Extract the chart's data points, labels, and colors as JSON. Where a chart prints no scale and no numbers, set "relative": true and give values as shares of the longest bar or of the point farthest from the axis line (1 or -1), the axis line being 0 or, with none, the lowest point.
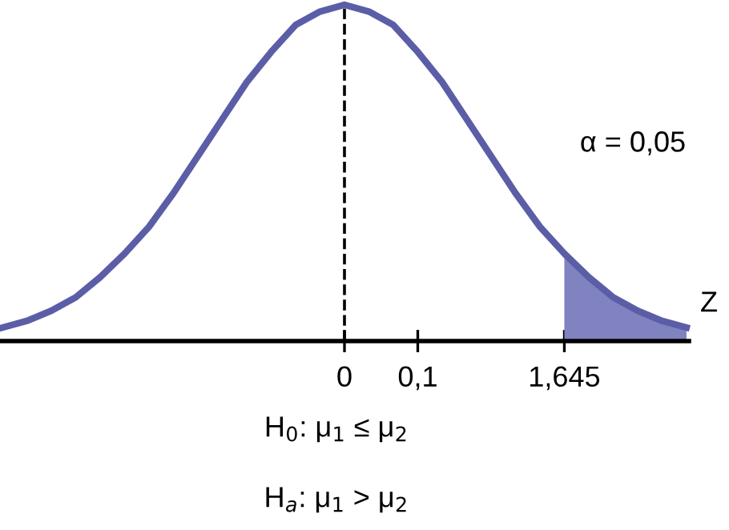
{
  "chart_data": {
    "type": "line",
    "relative": true,
    "xlabel": "Z",
    "categories": [
      null,
      null,
      null,
      null,
      null,
      null,
      null,
      null,
      null,
      null,
      null,
      null,
      null,
      null,
      "0",
      null,
      null,
      "0,1",
      null,
      null,
      null,
      null,
      null,
      "1,645",
      null,
      null,
      null,
      null,
      null
    ],
    "series": [
      {
        "color": "#5b5ea6",
        "values": [
          0.04,
          0.06,
          0.09,
          0.13,
          0.19,
          0.26,
          0.34,
          0.44,
          0.55,
          0.66,
          0.77,
          0.86,
          0.94,
          0.98,
          1,
          0.98,
          0.94,
          0.86,
          0.77,
          0.66,
          0.55,
          0.44,
          0.34,
          0.26,
          0.19,
          0.13,
          0.09,
          0.06,
          0.04
        ]
      },
      {
        "type": "area",
        "color": "#8083c0",
        "values": [
          null,
          null,
          null,
          null,
          null,
          null,
          null,
          null,
          null,
          null,
          null,
          null,
          null,
          null,
          null,
          null,
          null,
          null,
          null,
          null,
          null,
          null,
          null,
          0.26,
          0.19,
          0.13,
          0.09,
          0.06,
          0.04
        ]
      }
    ],
    "ref_lines": [
      {
        "axis": "x",
        "value": "0",
        "line_style": "dashed",
        "color": "#000000"
      }
    ],
    "annotations": [
      "α = 0,05",
      "H$_{0}$: μ$_{1}$ ≤ μ$_{2}$",
      "H$_{a}$: μ$_{1}$ > μ$_{2}$"
    ],
    "grid": false,
    "legend": false,
    "line_style": "solid",
    "marker": "none"
  }
}
